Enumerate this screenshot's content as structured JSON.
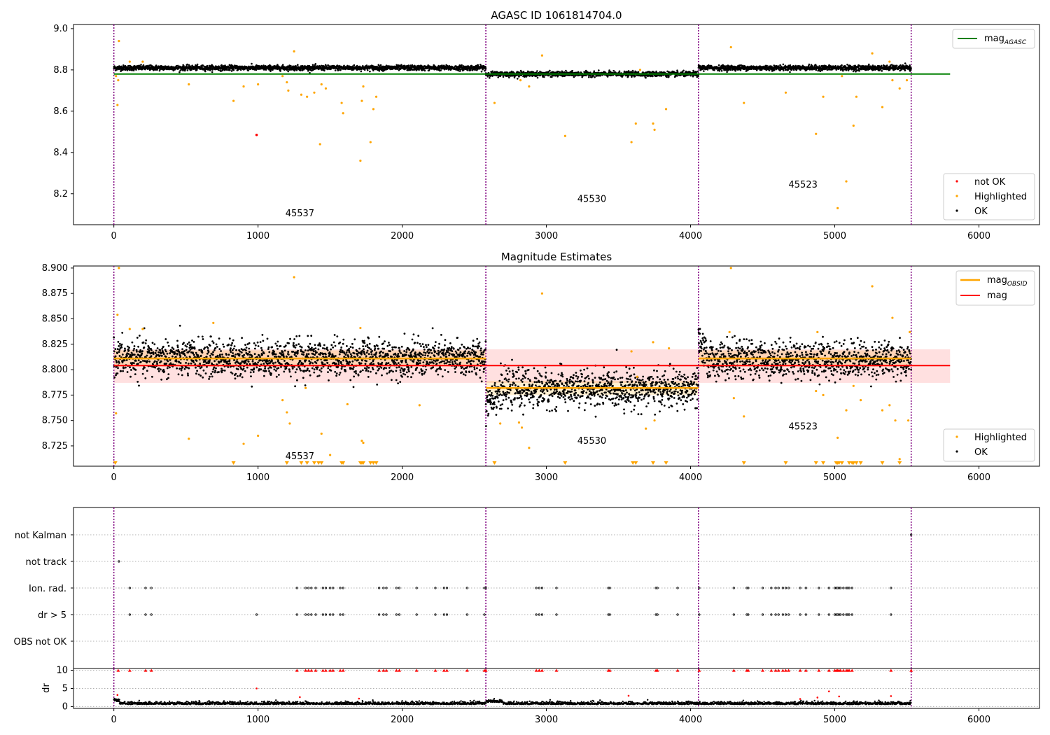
{
  "chart_data": [
    {
      "type": "scatter",
      "title": "AGASC ID 1061814704.0",
      "xlim": [
        -280,
        6420
      ],
      "ylim": [
        8.05,
        9.02
      ],
      "x_ticks": [
        0,
        1000,
        2000,
        3000,
        4000,
        5000,
        6000
      ],
      "y_ticks": [
        8.2,
        8.4,
        8.6,
        8.8,
        9.0
      ],
      "y_tick_labels": [
        "8.2",
        "8.4",
        "8.6",
        "8.8",
        "9.0"
      ],
      "obs_boundaries": [
        0,
        2580,
        4055,
        5530
      ],
      "obs_labels": [
        {
          "text": "45537",
          "x": 1290,
          "y": 8.09
        },
        {
          "text": "45530",
          "x": 3315,
          "y": 8.16
        },
        {
          "text": "45523",
          "x": 4780,
          "y": 8.23
        }
      ],
      "reference_line": {
        "name": "mag",
        "subscript": "AGASC",
        "y": 8.78,
        "x_range": [
          0,
          5800
        ],
        "color": "#008000"
      },
      "segments": [
        {
          "x_range": [
            0,
            2580
          ],
          "level": 8.81,
          "spread": 0.006
        },
        {
          "x_range": [
            2580,
            4055
          ],
          "level": 8.78,
          "spread": 0.006
        },
        {
          "x_range": [
            4055,
            5530
          ],
          "level": 8.81,
          "spread": 0.006
        }
      ],
      "highlighted_points": [
        [
          15,
          8.77
        ],
        [
          25,
          8.63
        ],
        [
          35,
          8.94
        ],
        [
          30,
          8.75
        ],
        [
          110,
          8.84
        ],
        [
          200,
          8.84
        ],
        [
          520,
          8.73
        ],
        [
          830,
          8.65
        ],
        [
          900,
          8.72
        ],
        [
          1000,
          8.73
        ],
        [
          1170,
          8.77
        ],
        [
          1200,
          8.74
        ],
        [
          1210,
          8.7
        ],
        [
          1250,
          8.89
        ],
        [
          1300,
          8.68
        ],
        [
          1340,
          8.67
        ],
        [
          1390,
          8.69
        ],
        [
          1430,
          8.44
        ],
        [
          1440,
          8.73
        ],
        [
          1470,
          8.71
        ],
        [
          1580,
          8.64
        ],
        [
          1590,
          8.59
        ],
        [
          1710,
          8.36
        ],
        [
          1720,
          8.65
        ],
        [
          1730,
          8.72
        ],
        [
          1780,
          8.45
        ],
        [
          1800,
          8.61
        ],
        [
          1820,
          8.67
        ],
        [
          2640,
          8.64
        ],
        [
          2820,
          8.75
        ],
        [
          2880,
          8.72
        ],
        [
          2970,
          8.87
        ],
        [
          3130,
          8.48
        ],
        [
          3590,
          8.45
        ],
        [
          3620,
          8.54
        ],
        [
          3650,
          8.8
        ],
        [
          3740,
          8.54
        ],
        [
          3750,
          8.51
        ],
        [
          3830,
          8.61
        ],
        [
          4280,
          8.91
        ],
        [
          4370,
          8.64
        ],
        [
          4660,
          8.69
        ],
        [
          4870,
          8.49
        ],
        [
          4920,
          8.67
        ],
        [
          5020,
          8.13
        ],
        [
          5050,
          8.77
        ],
        [
          5080,
          8.26
        ],
        [
          5130,
          8.53
        ],
        [
          5150,
          8.67
        ],
        [
          5260,
          8.88
        ],
        [
          5330,
          8.62
        ],
        [
          5380,
          8.84
        ],
        [
          5400,
          8.75
        ],
        [
          5450,
          8.71
        ],
        [
          5500,
          8.75
        ]
      ],
      "not_ok_points": [
        [
          990,
          8.485
        ]
      ],
      "legend": [
        {
          "label": "not OK",
          "color": "#ff0000"
        },
        {
          "label": "Highlighted",
          "color": "#ffa500"
        },
        {
          "label": "OK",
          "color": "#000000"
        }
      ],
      "legend_position": "lower-right",
      "reference_legend_position": "upper-right"
    },
    {
      "type": "scatter",
      "title": "Magnitude Estimates",
      "xlim": [
        -280,
        6420
      ],
      "ylim": [
        8.705,
        8.902
      ],
      "x_ticks": [
        0,
        1000,
        2000,
        3000,
        4000,
        5000,
        6000
      ],
      "y_ticks": [
        8.725,
        8.75,
        8.775,
        8.8,
        8.825,
        8.85,
        8.875,
        8.9
      ],
      "y_tick_labels": [
        "8.725",
        "8.750",
        "8.775",
        "8.800",
        "8.825",
        "8.850",
        "8.875",
        "8.900"
      ],
      "obs_boundaries": [
        0,
        2580,
        4055,
        5530
      ],
      "obs_labels": [
        {
          "text": "45537",
          "x": 1290,
          "y": 8.712
        },
        {
          "text": "45530",
          "x": 3315,
          "y": 8.727
        },
        {
          "text": "45523",
          "x": 4780,
          "y": 8.741
        }
      ],
      "mag_line": {
        "name": "mag",
        "y": 8.804,
        "band": [
          8.787,
          8.82
        ],
        "x_range": [
          0,
          5800
        ],
        "color": "#ff0000"
      },
      "obsid_lines": {
        "name": "mag",
        "subscript": "OBSID",
        "color": "#ffa500",
        "segments": [
          {
            "x_range": [
              0,
              2580
            ],
            "y": 8.811,
            "band": [
              8.803,
              8.819
            ]
          },
          {
            "x_range": [
              2580,
              4055
            ],
            "y": 8.782,
            "band": [
              8.775,
              8.789
            ]
          },
          {
            "x_range": [
              4055,
              5530
            ],
            "y": 8.811,
            "band": [
              8.803,
              8.819
            ]
          }
        ]
      },
      "ok_segments": [
        {
          "x_range": [
            0,
            2580
          ],
          "level": 8.811,
          "spread": 0.02
        },
        {
          "x_range": [
            2580,
            4055
          ],
          "level": 8.781,
          "spread": 0.02
        },
        {
          "x_range": [
            4055,
            5530
          ],
          "level": 8.81,
          "spread": 0.02
        }
      ],
      "highlighted_points": [
        [
          15,
          8.757
        ],
        [
          25,
          8.854
        ],
        [
          35,
          8.9
        ],
        [
          110,
          8.84
        ],
        [
          200,
          8.84
        ],
        [
          520,
          8.732
        ],
        [
          690,
          8.846
        ],
        [
          900,
          8.727
        ],
        [
          1000,
          8.735
        ],
        [
          1170,
          8.77
        ],
        [
          1200,
          8.758
        ],
        [
          1220,
          8.747
        ],
        [
          1250,
          8.891
        ],
        [
          1330,
          8.782
        ],
        [
          1440,
          8.737
        ],
        [
          1500,
          8.716
        ],
        [
          1620,
          8.766
        ],
        [
          1710,
          8.841
        ],
        [
          1720,
          8.73
        ],
        [
          1730,
          8.728
        ],
        [
          2120,
          8.765
        ],
        [
          2680,
          8.747
        ],
        [
          2810,
          8.748
        ],
        [
          2830,
          8.743
        ],
        [
          2880,
          8.723
        ],
        [
          2970,
          8.875
        ],
        [
          3590,
          8.818
        ],
        [
          3630,
          8.793
        ],
        [
          3690,
          8.742
        ],
        [
          3740,
          8.827
        ],
        [
          3750,
          8.75
        ],
        [
          3850,
          8.821
        ],
        [
          4270,
          8.837
        ],
        [
          4280,
          8.9
        ],
        [
          4300,
          8.772
        ],
        [
          4370,
          8.754
        ],
        [
          4870,
          8.779
        ],
        [
          4880,
          8.837
        ],
        [
          4920,
          8.775
        ],
        [
          5020,
          8.733
        ],
        [
          5080,
          8.76
        ],
        [
          5130,
          8.784
        ],
        [
          5180,
          8.77
        ],
        [
          5260,
          8.882
        ],
        [
          5330,
          8.76
        ],
        [
          5380,
          8.765
        ],
        [
          5400,
          8.851
        ],
        [
          5420,
          8.75
        ],
        [
          5450,
          8.712
        ],
        [
          5510,
          8.75
        ],
        [
          5520,
          8.837
        ]
      ],
      "clipped_low_x": [
        10,
        830,
        1200,
        1300,
        1340,
        1390,
        1420,
        1440,
        1580,
        1590,
        1710,
        1720,
        1730,
        1780,
        1800,
        1820,
        2640,
        3130,
        3600,
        3620,
        3740,
        3830,
        4370,
        4660,
        4870,
        4920,
        5010,
        5020,
        5030,
        5050,
        5100,
        5120,
        5130,
        5150,
        5180,
        5330,
        5450
      ],
      "legend": [
        {
          "label": "Highlighted",
          "color": "#ffa500"
        },
        {
          "label": "OK",
          "color": "#000000"
        }
      ],
      "legend_position": "lower-right",
      "line_legend_position": "upper-right"
    },
    {
      "type": "scatter",
      "title": "",
      "xlim": [
        -280,
        6420
      ],
      "categories": [
        "OBS not OK",
        "dr > 5",
        "Ion. rad.",
        "not track",
        "not Kalman"
      ],
      "obs_boundaries": [
        0,
        2580,
        4055,
        5530
      ],
      "flag_points": {
        "not Kalman": [
          5530
        ],
        "not track": [
          35
        ],
        "Ion. rad.": [
          110,
          220,
          260,
          1270,
          1330,
          1350,
          1370,
          1400,
          1450,
          1470,
          1500,
          1520,
          1570,
          1590,
          1840,
          1870,
          1890,
          1960,
          1980,
          2100,
          2230,
          2290,
          2310,
          2450,
          2570,
          2580,
          2930,
          2950,
          2970,
          3070,
          3430,
          3440,
          3760,
          3770,
          3910,
          4060,
          4300,
          4390,
          4400,
          4500,
          4560,
          4590,
          4610,
          4640,
          4660,
          4680,
          4760,
          4800,
          4890,
          4960,
          5000,
          5010,
          5020,
          5030,
          5040,
          5060,
          5080,
          5090,
          5100,
          5120,
          5390
        ],
        "dr > 5": [
          110,
          220,
          260,
          990,
          1270,
          1330,
          1350,
          1370,
          1400,
          1450,
          1470,
          1500,
          1520,
          1570,
          1590,
          1840,
          1870,
          1890,
          1960,
          1980,
          2100,
          2230,
          2290,
          2310,
          2450,
          2570,
          2930,
          2950,
          2970,
          3070,
          3430,
          3440,
          3760,
          3770,
          3910,
          4060,
          4300,
          4390,
          4400,
          4500,
          4560,
          4590,
          4610,
          4640,
          4660,
          4680,
          4760,
          4800,
          4890,
          4960,
          5000,
          5010,
          5020,
          5030,
          5040,
          5060,
          5080,
          5090,
          5100,
          5120,
          5390
        ]
      }
    },
    {
      "type": "scatter",
      "title": "",
      "ylabel": "dr",
      "xlim": [
        -280,
        6420
      ],
      "ylim": [
        -0.5,
        10.5
      ],
      "x_ticks": [
        0,
        1000,
        2000,
        3000,
        4000,
        5000,
        6000
      ],
      "y_ticks": [
        0,
        5,
        10
      ],
      "y_tick_labels": [
        "0",
        "5",
        "10"
      ],
      "obs_boundaries": [
        0,
        2580,
        4055,
        5530
      ],
      "baseline": 0.6,
      "outliers": [
        [
          25,
          3.2
        ],
        [
          990,
          5.0
        ],
        [
          1290,
          2.6
        ],
        [
          1700,
          2.2
        ],
        [
          3570,
          3.0
        ],
        [
          4760,
          2.1
        ],
        [
          4880,
          2.5
        ],
        [
          4960,
          4.2
        ],
        [
          5030,
          2.8
        ],
        [
          5390,
          2.9
        ]
      ],
      "clipped_high_x": [
        30,
        110,
        220,
        260,
        1270,
        1330,
        1350,
        1370,
        1400,
        1450,
        1470,
        1500,
        1520,
        1570,
        1590,
        1840,
        1870,
        1890,
        1960,
        1980,
        2100,
        2230,
        2290,
        2310,
        2450,
        2570,
        2580,
        2930,
        2950,
        2970,
        3070,
        3430,
        3440,
        3760,
        3770,
        3910,
        4060,
        4300,
        4390,
        4400,
        4500,
        4560,
        4590,
        4610,
        4640,
        4660,
        4680,
        4760,
        4800,
        4890,
        4960,
        5000,
        5010,
        5020,
        5030,
        5040,
        5060,
        5080,
        5090,
        5100,
        5120,
        5390,
        5530
      ]
    }
  ]
}
